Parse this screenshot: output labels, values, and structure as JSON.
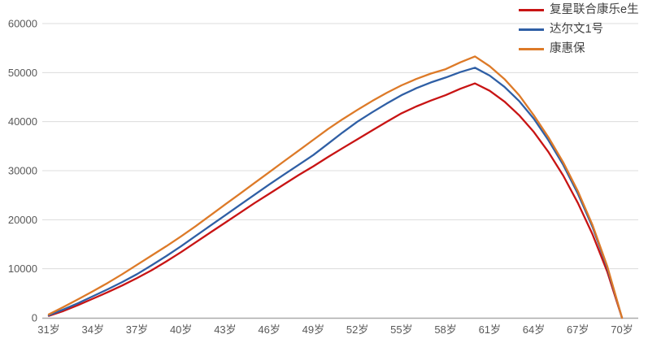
{
  "chart_data": {
    "type": "line",
    "x_unit": "岁",
    "x": [
      31,
      32,
      33,
      34,
      35,
      36,
      37,
      38,
      39,
      40,
      41,
      42,
      43,
      44,
      45,
      46,
      47,
      48,
      49,
      50,
      51,
      52,
      53,
      54,
      55,
      56,
      57,
      58,
      59,
      60,
      61,
      62,
      63,
      64,
      65,
      66,
      67,
      68,
      69,
      70
    ],
    "x_ticks": [
      31,
      34,
      37,
      40,
      43,
      46,
      49,
      52,
      55,
      58,
      61,
      64,
      67,
      70
    ],
    "x_tick_labels": [
      "31岁",
      "34岁",
      "37岁",
      "40岁",
      "43岁",
      "46岁",
      "49岁",
      "52岁",
      "55岁",
      "58岁",
      "61岁",
      "64岁",
      "67岁",
      "70岁"
    ],
    "y_ticks": [
      0,
      10000,
      20000,
      30000,
      40000,
      50000,
      60000
    ],
    "y_tick_labels": [
      "0",
      "10000",
      "20000",
      "30000",
      "40000",
      "50000",
      "60000"
    ],
    "ylim": [
      0,
      60000
    ],
    "grid": true,
    "legend_position": "top-right",
    "series": [
      {
        "name": "复星联合康乐e生",
        "color": "#C81414",
        "values": [
          400,
          1400,
          2600,
          3900,
          5200,
          6600,
          8100,
          9700,
          11500,
          13400,
          15400,
          17400,
          19400,
          21400,
          23400,
          25300,
          27200,
          29100,
          30900,
          32800,
          34600,
          36400,
          38200,
          40000,
          41700,
          43100,
          44300,
          45400,
          46700,
          47800,
          46300,
          44100,
          41300,
          37900,
          33800,
          29000,
          23400,
          17000,
          9400,
          0
        ]
      },
      {
        "name": "达尔文1号",
        "color": "#2F5FA5",
        "values": [
          500,
          1700,
          3000,
          4400,
          5800,
          7300,
          8900,
          10700,
          12600,
          14600,
          16700,
          18800,
          20900,
          23000,
          25100,
          27200,
          29200,
          31200,
          33200,
          35500,
          37800,
          40000,
          41900,
          43700,
          45400,
          46800,
          48000,
          49000,
          50100,
          51000,
          49400,
          47100,
          44200,
          40600,
          36200,
          31200,
          25300,
          18500,
          10200,
          0
        ]
      },
      {
        "name": "康惠保",
        "color": "#DD7A28",
        "values": [
          700,
          2200,
          3800,
          5400,
          7100,
          8900,
          10800,
          12700,
          14600,
          16600,
          18700,
          20900,
          23100,
          25300,
          27500,
          29700,
          31900,
          34100,
          36300,
          38500,
          40500,
          42400,
          44200,
          45900,
          47400,
          48700,
          49800,
          50700,
          52100,
          53300,
          51300,
          48700,
          45400,
          41300,
          36800,
          31700,
          25800,
          18900,
          10500,
          0
        ]
      }
    ]
  },
  "colors": {
    "gridline": "#DCDCDC",
    "axis_line": "#ACACAC",
    "axis_text": "#595959",
    "legend_text": "#3f3f3f",
    "background": "#ffffff"
  }
}
